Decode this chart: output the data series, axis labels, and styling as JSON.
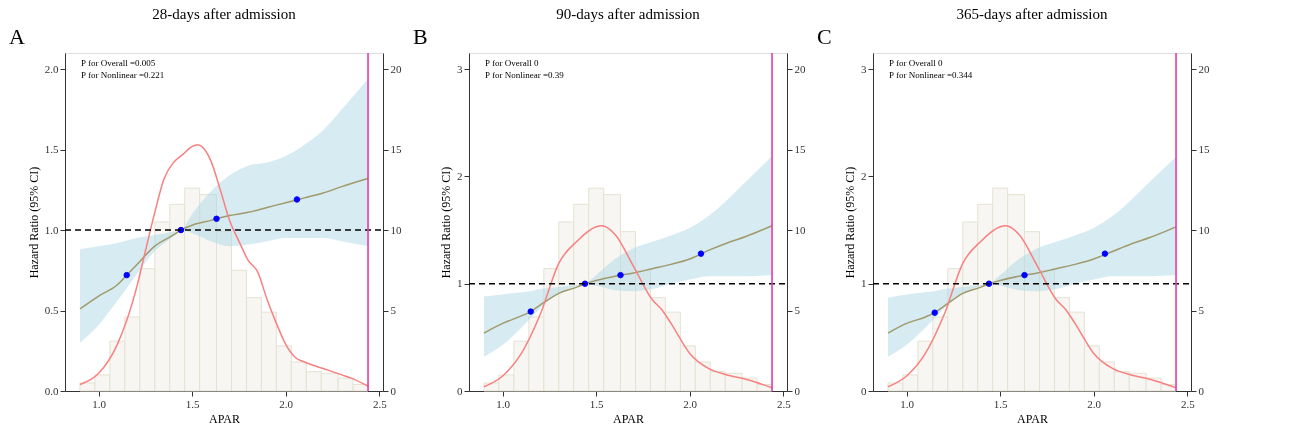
{
  "chart_data": [
    {
      "type": "line",
      "title": "28-days after admission",
      "xlabel": "APAR",
      "ylabel": "Hazard Ratio (95% CI)",
      "annotations": [
        "A",
        "P for Overall =0.005",
        "P for Nonlinear =0.221"
      ],
      "xlim": [
        0.82,
        2.52
      ],
      "xticks": [
        {
          "value": 1,
          "label": "1.0"
        },
        {
          "value": 1.5,
          "label": "1.5"
        },
        {
          "value": 2,
          "label": "2.0"
        },
        {
          "value": 2.5,
          "label": "2.5"
        }
      ],
      "ylim": [
        0,
        2.1
      ],
      "yticks": [
        {
          "value": 0,
          "label": "0.0"
        },
        {
          "value": 0.5,
          "label": "0.5"
        },
        {
          "value": 1,
          "label": "1.0"
        },
        {
          "value": 1.5,
          "label": "1.5"
        },
        {
          "value": 2,
          "label": "2.0"
        }
      ],
      "y2lim": [
        0,
        21
      ],
      "y2ticks": [
        0,
        5,
        10,
        15,
        20
      ],
      "grid": false,
      "ref_lines": [
        {
          "axis": "y",
          "value": 1,
          "color": "#000000",
          "line_style": "dashed"
        },
        {
          "axis": "x",
          "value": 2.44,
          "color": "#e33cab",
          "line_style": "solid"
        }
      ],
      "series": [
        {
          "type": "histogram",
          "axis": "y2",
          "color": "#f7f6f2",
          "bins": [
            0.9,
            0.98,
            1.06,
            1.14,
            1.22,
            1.3,
            1.38,
            1.46,
            1.54,
            1.63,
            1.71,
            1.79,
            1.87,
            1.95,
            2.03,
            2.11,
            2.19,
            2.28,
            2.36,
            2.44
          ],
          "values": [
            0.5,
            1.0,
            3.1,
            4.6,
            7.6,
            10.5,
            11.6,
            12.6,
            12.2,
            9.9,
            7.5,
            5.8,
            4.9,
            2.8,
            1.8,
            1.2,
            1.1,
            0.8,
            0.4
          ]
        },
        {
          "type": "line",
          "color": "#a09a6c",
          "x": [
            0.9,
            1.0,
            1.1,
            1.15,
            1.2,
            1.3,
            1.4,
            1.44,
            1.5,
            1.6,
            1.7,
            1.8,
            1.9,
            2.0,
            2.1,
            2.2,
            2.3,
            2.44
          ],
          "values": [
            0.51,
            0.59,
            0.66,
            0.72,
            0.78,
            0.9,
            0.97,
            1.0,
            1.03,
            1.06,
            1.09,
            1.11,
            1.14,
            1.17,
            1.2,
            1.23,
            1.27,
            1.32
          ],
          "lower": [
            0.3,
            0.41,
            0.56,
            0.64,
            0.72,
            0.87,
            0.96,
            1.0,
            0.98,
            0.93,
            0.9,
            0.91,
            0.93,
            0.95,
            0.95,
            0.95,
            0.93,
            0.9
          ],
          "upper": [
            0.88,
            0.9,
            0.92,
            0.935,
            0.95,
            0.97,
            0.99,
            1.0,
            1.1,
            1.24,
            1.34,
            1.4,
            1.42,
            1.46,
            1.53,
            1.62,
            1.75,
            1.94
          ]
        },
        {
          "type": "line",
          "color": "#f88080",
          "x": [
            0.9,
            1.0,
            1.1,
            1.2,
            1.25,
            1.3,
            1.35,
            1.4,
            1.45,
            1.5,
            1.53,
            1.55,
            1.6,
            1.65,
            1.7,
            1.75,
            1.8,
            1.85,
            1.9,
            1.95,
            2.0,
            2.05,
            2.1,
            2.2,
            2.3,
            2.35,
            2.44
          ],
          "values": [
            0.04,
            0.11,
            0.29,
            0.63,
            0.87,
            1.11,
            1.32,
            1.42,
            1.47,
            1.52,
            1.53,
            1.52,
            1.43,
            1.25,
            1.06,
            0.93,
            0.81,
            0.74,
            0.57,
            0.42,
            0.29,
            0.21,
            0.18,
            0.14,
            0.1,
            0.08,
            0.03
          ]
        },
        {
          "type": "scatter",
          "color": "#0000ff",
          "marker": "circle",
          "x": [
            1.15,
            1.44,
            1.63,
            2.06
          ],
          "values": [
            0.72,
            1.0,
            1.07,
            1.19
          ]
        }
      ]
    },
    {
      "type": "line",
      "title": "90-days after admission",
      "xlabel": "APAR",
      "ylabel": "Hazard Ratio (95% CI)",
      "annotations": [
        "B",
        "P for Overall 0",
        "P for Nonlinear =0.39"
      ],
      "xlim": [
        0.82,
        2.52
      ],
      "xticks": [
        {
          "value": 1,
          "label": "1.0"
        },
        {
          "value": 1.5,
          "label": "1.5"
        },
        {
          "value": 2,
          "label": "2.0"
        },
        {
          "value": 2.5,
          "label": "2.5"
        }
      ],
      "ylim": [
        0,
        3.15
      ],
      "yticks": [
        0,
        1,
        2,
        3
      ],
      "y2lim": [
        0,
        21
      ],
      "y2ticks": [
        0,
        5,
        10,
        15,
        20
      ],
      "grid": false,
      "ref_lines": [
        {
          "axis": "y",
          "value": 1,
          "color": "#000000",
          "line_style": "dashed"
        },
        {
          "axis": "x",
          "value": 2.44,
          "color": "#e33cab",
          "line_style": "solid"
        }
      ],
      "series": [
        {
          "type": "histogram",
          "axis": "y2",
          "color": "#f7f6f2",
          "bins": [
            0.9,
            0.98,
            1.06,
            1.14,
            1.22,
            1.3,
            1.38,
            1.46,
            1.54,
            1.63,
            1.71,
            1.79,
            1.87,
            1.95,
            2.03,
            2.11,
            2.19,
            2.28,
            2.36,
            2.44
          ],
          "values": [
            0.5,
            1.0,
            3.1,
            4.6,
            7.6,
            10.5,
            11.6,
            12.6,
            12.2,
            9.9,
            7.5,
            5.8,
            4.9,
            2.8,
            1.8,
            1.2,
            1.1,
            0.8,
            0.4
          ]
        },
        {
          "type": "line",
          "color": "#a09a6c",
          "x": [
            0.9,
            1.0,
            1.1,
            1.15,
            1.2,
            1.3,
            1.4,
            1.44,
            1.5,
            1.6,
            1.7,
            1.8,
            1.9,
            2.0,
            2.1,
            2.2,
            2.3,
            2.44
          ],
          "values": [
            0.54,
            0.63,
            0.7,
            0.74,
            0.8,
            0.91,
            0.97,
            1.0,
            1.03,
            1.07,
            1.1,
            1.14,
            1.18,
            1.23,
            1.31,
            1.38,
            1.44,
            1.54
          ],
          "lower": [
            0.32,
            0.43,
            0.59,
            0.68,
            0.77,
            0.91,
            0.98,
            1.0,
            0.98,
            0.94,
            0.93,
            0.95,
            1.0,
            1.04,
            1.07,
            1.07,
            1.07,
            1.08
          ],
          "upper": [
            0.88,
            0.9,
            0.92,
            0.93,
            0.95,
            0.97,
            0.99,
            1.0,
            1.08,
            1.23,
            1.33,
            1.39,
            1.45,
            1.52,
            1.63,
            1.78,
            1.95,
            2.19
          ]
        },
        {
          "type": "line",
          "color": "#f88080",
          "x": [
            0.9,
            1.0,
            1.1,
            1.2,
            1.3,
            1.4,
            1.5,
            1.53,
            1.6,
            1.7,
            1.8,
            1.85,
            1.9,
            2.0,
            2.1,
            2.2,
            2.3,
            2.44
          ],
          "values": [
            0.04,
            0.14,
            0.35,
            0.71,
            1.19,
            1.4,
            1.53,
            1.54,
            1.46,
            1.16,
            0.85,
            0.76,
            0.63,
            0.35,
            0.21,
            0.15,
            0.11,
            0.03
          ]
        },
        {
          "type": "scatter",
          "color": "#0000ff",
          "marker": "circle",
          "x": [
            1.15,
            1.44,
            1.63,
            2.06
          ],
          "values": [
            0.74,
            1.0,
            1.08,
            1.28
          ]
        }
      ]
    },
    {
      "type": "line",
      "title": "365-days after admission",
      "xlabel": "APAR",
      "ylabel": "Hazard Ratio (95% CI)",
      "annotations": [
        "C",
        "P for Overall 0",
        "P for Nonlinear =0.344"
      ],
      "xlim": [
        0.82,
        2.52
      ],
      "xticks": [
        {
          "value": 1,
          "label": "1.0"
        },
        {
          "value": 1.5,
          "label": "1.5"
        },
        {
          "value": 2,
          "label": "2.0"
        },
        {
          "value": 2.5,
          "label": "2.5"
        }
      ],
      "ylim": [
        0,
        3.15
      ],
      "yticks": [
        0,
        1,
        2,
        3
      ],
      "y2lim": [
        0,
        21
      ],
      "y2ticks": [
        0,
        5,
        10,
        15,
        20
      ],
      "grid": false,
      "ref_lines": [
        {
          "axis": "y",
          "value": 1,
          "color": "#000000",
          "line_style": "dashed"
        },
        {
          "axis": "x",
          "value": 2.44,
          "color": "#e33cab",
          "line_style": "solid"
        }
      ],
      "series": [
        {
          "type": "histogram",
          "axis": "y2",
          "color": "#f7f6f2",
          "bins": [
            0.9,
            0.98,
            1.06,
            1.14,
            1.22,
            1.3,
            1.38,
            1.46,
            1.54,
            1.63,
            1.71,
            1.79,
            1.87,
            1.95,
            2.03,
            2.11,
            2.19,
            2.28,
            2.36,
            2.44
          ],
          "values": [
            0.5,
            1.0,
            3.1,
            4.6,
            7.6,
            10.5,
            11.6,
            12.6,
            12.2,
            9.9,
            7.5,
            5.8,
            4.9,
            2.8,
            1.8,
            1.2,
            1.1,
            0.8,
            0.4
          ]
        },
        {
          "type": "line",
          "color": "#a09a6c",
          "x": [
            0.9,
            1.0,
            1.1,
            1.15,
            1.2,
            1.3,
            1.4,
            1.44,
            1.5,
            1.6,
            1.7,
            1.8,
            1.9,
            2.0,
            2.1,
            2.2,
            2.3,
            2.44
          ],
          "values": [
            0.54,
            0.63,
            0.69,
            0.73,
            0.79,
            0.91,
            0.97,
            1.0,
            1.03,
            1.07,
            1.1,
            1.14,
            1.18,
            1.23,
            1.3,
            1.37,
            1.43,
            1.53
          ],
          "lower": [
            0.32,
            0.43,
            0.59,
            0.68,
            0.77,
            0.91,
            0.98,
            1.0,
            0.98,
            0.94,
            0.93,
            0.95,
            1.0,
            1.04,
            1.07,
            1.07,
            1.07,
            1.08
          ],
          "upper": [
            0.87,
            0.9,
            0.92,
            0.93,
            0.95,
            0.97,
            0.99,
            1.0,
            1.08,
            1.23,
            1.33,
            1.39,
            1.45,
            1.52,
            1.63,
            1.78,
            1.95,
            2.18
          ]
        },
        {
          "type": "line",
          "color": "#f88080",
          "x": [
            0.9,
            1.0,
            1.1,
            1.2,
            1.3,
            1.4,
            1.5,
            1.53,
            1.6,
            1.7,
            1.8,
            1.85,
            1.9,
            2.0,
            2.1,
            2.2,
            2.3,
            2.44
          ],
          "values": [
            0.04,
            0.14,
            0.35,
            0.71,
            1.19,
            1.4,
            1.53,
            1.54,
            1.46,
            1.16,
            0.85,
            0.76,
            0.63,
            0.35,
            0.21,
            0.15,
            0.11,
            0.03
          ]
        },
        {
          "type": "scatter",
          "color": "#0000ff",
          "marker": "circle",
          "x": [
            1.15,
            1.44,
            1.63,
            2.06
          ],
          "values": [
            0.73,
            1.0,
            1.08,
            1.28
          ]
        }
      ]
    }
  ]
}
